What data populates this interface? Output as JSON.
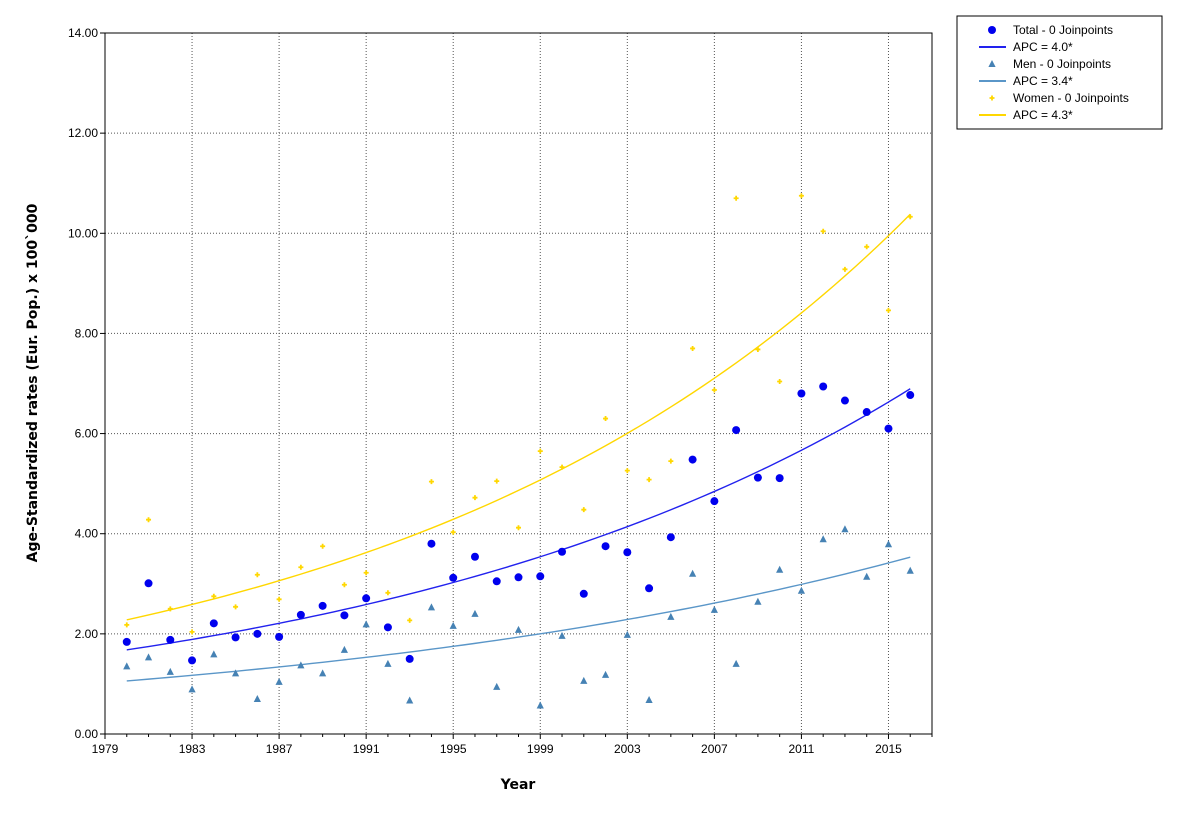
{
  "chart_data": {
    "type": "scatter",
    "title": "",
    "xlabel": "Year",
    "ylabel": "Age-Standardized rates (Eur. Pop.) x 100`000",
    "xlim": [
      1979,
      2017
    ],
    "ylim": [
      0,
      14
    ],
    "x_ticks": [
      1979,
      1983,
      1987,
      1991,
      1995,
      1999,
      2003,
      2007,
      2011,
      2015
    ],
    "x_tick_labels": [
      "1979",
      "1983",
      "1987",
      "1991",
      "1995",
      "1999",
      "2003",
      "2007",
      "2011",
      "2015"
    ],
    "y_ticks": [
      0,
      2,
      4,
      6,
      8,
      10,
      12,
      14
    ],
    "y_tick_labels": [
      "0.00",
      "2.00",
      "4.00",
      "6.00",
      "8.00",
      "10.00",
      "12.00",
      "14.00"
    ],
    "grid": true,
    "legend_position": "top-right outside",
    "x": [
      1980,
      1981,
      1982,
      1983,
      1984,
      1985,
      1986,
      1987,
      1988,
      1989,
      1990,
      1991,
      1992,
      1993,
      1994,
      1995,
      1996,
      1997,
      1998,
      1999,
      2000,
      2001,
      2002,
      2003,
      2004,
      2005,
      2006,
      2007,
      2008,
      2009,
      2010,
      2011,
      2012,
      2013,
      2014,
      2015,
      2016
    ],
    "series": [
      {
        "name": "Total - 0 Joinpoints",
        "marker": "circle",
        "color": "#0000ee",
        "values": [
          1.84,
          3.01,
          1.88,
          1.47,
          2.21,
          1.93,
          2.0,
          1.94,
          2.38,
          2.56,
          2.37,
          2.71,
          2.13,
          1.5,
          3.8,
          3.12,
          3.54,
          3.05,
          3.13,
          3.15,
          3.64,
          2.8,
          3.75,
          3.63,
          2.91,
          3.93,
          5.48,
          4.65,
          6.07,
          5.12,
          5.11,
          6.8,
          6.94,
          6.66,
          6.43,
          6.1,
          6.77
        ]
      },
      {
        "name": "Men - 0 Joinpoints",
        "marker": "triangle",
        "color": "#4682b4",
        "values": [
          1.35,
          1.53,
          1.24,
          0.89,
          1.59,
          1.21,
          0.7,
          1.04,
          1.37,
          1.21,
          1.68,
          2.19,
          1.4,
          0.67,
          2.53,
          2.16,
          2.4,
          0.94,
          2.08,
          0.57,
          1.96,
          1.06,
          1.18,
          1.98,
          0.68,
          2.34,
          3.2,
          2.48,
          1.4,
          2.64,
          3.28,
          2.86,
          3.89,
          4.09,
          3.14,
          3.79,
          3.26
        ]
      },
      {
        "name": "Women - 0 Joinpoints",
        "marker": "plus",
        "color": "#ffd700",
        "values": [
          2.18,
          4.28,
          2.5,
          2.04,
          2.75,
          2.54,
          3.18,
          2.69,
          3.33,
          3.75,
          2.98,
          3.22,
          2.82,
          2.27,
          5.04,
          4.03,
          4.72,
          5.05,
          4.12,
          5.65,
          5.33,
          4.48,
          6.3,
          5.26,
          5.08,
          5.45,
          7.7,
          6.87,
          10.7,
          7.68,
          7.04,
          10.75,
          10.04,
          9.28,
          9.73,
          8.46,
          10.33
        ]
      }
    ],
    "trend_lines": [
      {
        "name": "APC = 4.0*",
        "color": "#2222ee",
        "start_value": 1.68,
        "apc": 4.0
      },
      {
        "name": "APC = 3.4*",
        "color": "#5a96c8",
        "start_value": 1.06,
        "apc": 3.4
      },
      {
        "name": "APC = 4.3*",
        "color": "#ffd700",
        "start_value": 2.28,
        "apc": 4.3
      }
    ],
    "trend_x_range": [
      1980,
      2016
    ],
    "legend": [
      {
        "label": "Total - 0 Joinpoints",
        "kind": "marker",
        "shape": "circle",
        "color": "#0000ee"
      },
      {
        "label": "APC = 4.0*",
        "kind": "line",
        "color": "#2222ee"
      },
      {
        "label": "Men - 0 Joinpoints",
        "kind": "marker",
        "shape": "triangle",
        "color": "#4682b4"
      },
      {
        "label": "APC = 3.4*",
        "kind": "line",
        "color": "#5a96c8"
      },
      {
        "label": "Women - 0 Joinpoints",
        "kind": "marker",
        "shape": "plus",
        "color": "#ffd700"
      },
      {
        "label": "APC = 4.3*",
        "kind": "line",
        "color": "#ffd700"
      }
    ]
  }
}
